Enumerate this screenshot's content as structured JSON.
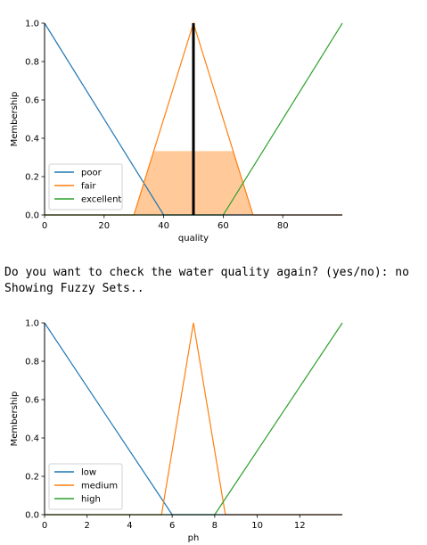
{
  "console": {
    "line1": "Do you want to check the water quality again? (yes/no): no",
    "line2": "Showing Fuzzy Sets.."
  },
  "chart_data": [
    {
      "type": "line",
      "xlabel": "quality",
      "ylabel": "Membership",
      "xlim": [
        0,
        100
      ],
      "ylim": [
        0,
        1
      ],
      "xticks": [
        0,
        20,
        40,
        60,
        80
      ],
      "yticks": [
        0.0,
        0.2,
        0.4,
        0.6,
        0.8,
        1.0
      ],
      "legend": "lower-left",
      "series": [
        {
          "name": "poor",
          "color": "#1f77b4",
          "x": [
            0,
            40,
            100
          ],
          "y": [
            1,
            0,
            0
          ]
        },
        {
          "name": "fair",
          "color": "#ff7f0e",
          "x": [
            0,
            30,
            50,
            70,
            100
          ],
          "y": [
            0,
            0,
            1,
            0,
            0
          ]
        },
        {
          "name": "excellent",
          "color": "#2ca02c",
          "x": [
            0,
            60,
            100
          ],
          "y": [
            0,
            0,
            1
          ]
        }
      ],
      "fill": {
        "color": "#ffc999",
        "x": [
          30,
          36.7,
          63.3,
          70
        ],
        "y": [
          0,
          0.333,
          0.333,
          0
        ]
      },
      "vline": {
        "x": 50,
        "y0": 0,
        "y1": 1,
        "color": "#000000"
      }
    },
    {
      "type": "line",
      "xlabel": "ph",
      "ylabel": "Membership",
      "xlim": [
        0,
        14
      ],
      "ylim": [
        0,
        1
      ],
      "xticks": [
        0,
        2,
        4,
        6,
        8,
        10,
        12
      ],
      "yticks": [
        0.0,
        0.2,
        0.4,
        0.6,
        0.8,
        1.0
      ],
      "legend": "lower-left",
      "series": [
        {
          "name": "low",
          "color": "#1f77b4",
          "x": [
            0,
            6,
            14
          ],
          "y": [
            1,
            0,
            0
          ]
        },
        {
          "name": "medium",
          "color": "#ff7f0e",
          "x": [
            0,
            5.5,
            7,
            8.5,
            14
          ],
          "y": [
            0,
            0,
            1,
            0,
            0
          ]
        },
        {
          "name": "high",
          "color": "#2ca02c",
          "x": [
            0,
            8,
            14
          ],
          "y": [
            0,
            0,
            1
          ]
        }
      ]
    }
  ]
}
